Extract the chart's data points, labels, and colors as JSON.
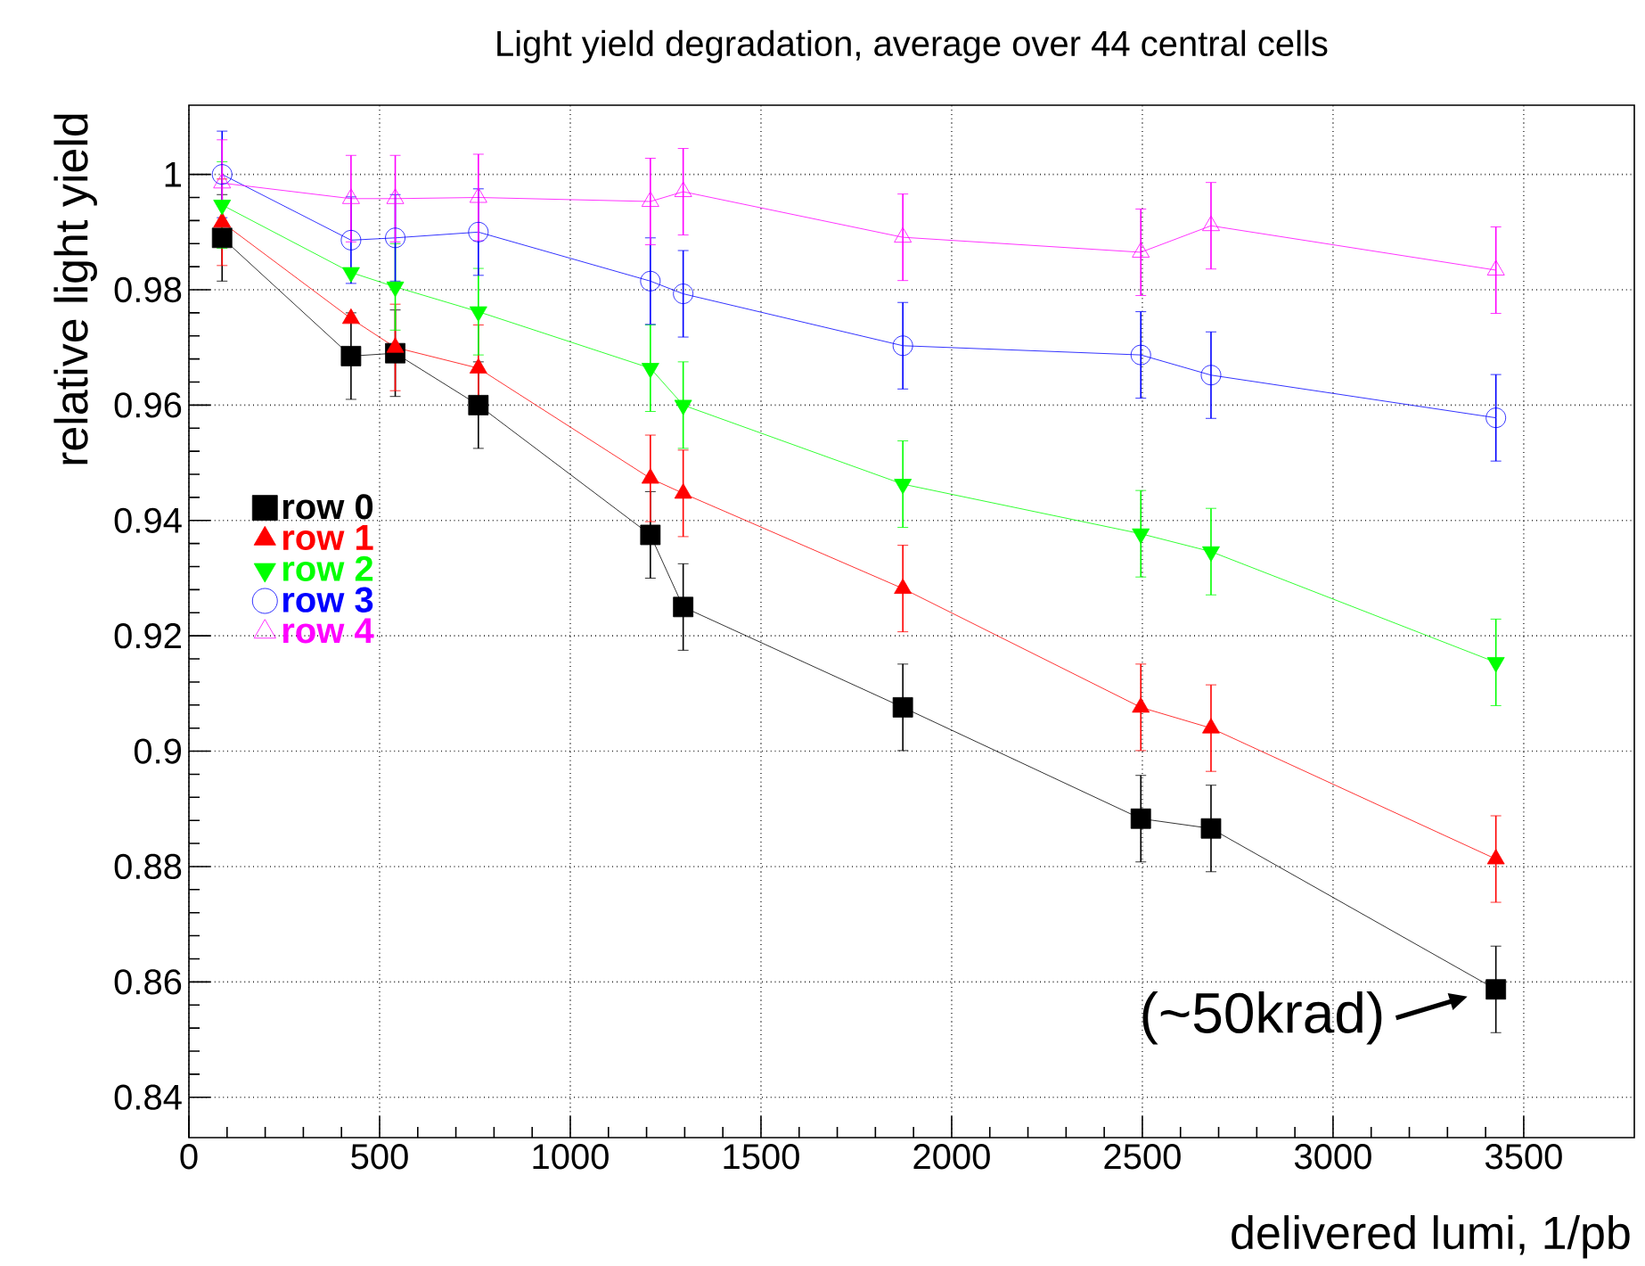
{
  "chart_data": {
    "type": "line",
    "title": "Light yield degradation, average over 44 central cells",
    "xlabel": "delivered lumi, 1/pb",
    "ylabel": "relative light yield",
    "xlim": [
      0,
      3790
    ],
    "ylim": [
      0.833,
      1.012
    ],
    "xticks": [
      0,
      500,
      1000,
      1500,
      2000,
      2500,
      3000,
      3500
    ],
    "yticks": [
      0.84,
      0.86,
      0.88,
      0.9,
      0.92,
      0.94,
      0.96,
      0.98,
      1
    ],
    "grid": true,
    "legend": "left",
    "line_style": "solid",
    "x": [
      87,
      425,
      541,
      759,
      1210,
      1296,
      1872,
      2496,
      2680,
      3427
    ],
    "series": [
      {
        "name": "row 0",
        "color": "#000000",
        "marker": "square",
        "values": [
          0.989,
          0.9685,
          0.969,
          0.96,
          0.9375,
          0.925,
          0.9076,
          0.8883,
          0.8866,
          0.8587
        ],
        "errors": [
          0.0075,
          0.0075,
          0.0075,
          0.0075,
          0.0075,
          0.0075,
          0.0075,
          0.0075,
          0.0075,
          0.0075
        ]
      },
      {
        "name": "row 1",
        "color": "#ff0000",
        "marker": "triangle",
        "values": [
          0.9917,
          0.975,
          0.97,
          0.9664,
          0.9473,
          0.9447,
          0.9282,
          0.9076,
          0.904,
          0.8813
        ],
        "errors": [
          0.0075,
          null,
          0.0075,
          0.0075,
          0.0075,
          0.0075,
          0.0075,
          0.0075,
          0.0075,
          0.0075
        ]
      },
      {
        "name": "row 2",
        "color": "#00ff00",
        "marker": "triangle-down",
        "values": [
          0.9947,
          0.983,
          0.9805,
          0.9762,
          0.9664,
          0.96,
          0.9463,
          0.9377,
          0.9346,
          0.9154
        ],
        "errors": [
          0.0075,
          null,
          0.0075,
          0.0075,
          0.0075,
          0.0075,
          0.0075,
          0.0075,
          0.0075,
          0.0075
        ]
      },
      {
        "name": "row 3",
        "color": "#0000ff",
        "marker": "circle",
        "values": [
          1.0,
          0.9886,
          0.989,
          0.99,
          0.9815,
          0.9793,
          0.9703,
          0.9687,
          0.9652,
          0.9578
        ],
        "errors": [
          0.0075,
          0.0075,
          0.0075,
          0.0075,
          0.0075,
          0.0075,
          0.0075,
          0.0075,
          0.0075,
          0.0075
        ]
      },
      {
        "name": "row 4",
        "color": "#ff00ff",
        "marker": "triangle-open",
        "values": [
          0.9985,
          0.9958,
          0.9958,
          0.996,
          0.9953,
          0.997,
          0.9891,
          0.9865,
          0.9911,
          0.9834
        ],
        "errors": [
          0.0075,
          0.0075,
          0.0075,
          0.0075,
          0.0075,
          0.0075,
          0.0075,
          0.0075,
          0.0075,
          0.0075
        ]
      }
    ],
    "annotations": [
      {
        "text": "(~50krad)",
        "x": 3427,
        "y": 0.8587
      }
    ]
  }
}
